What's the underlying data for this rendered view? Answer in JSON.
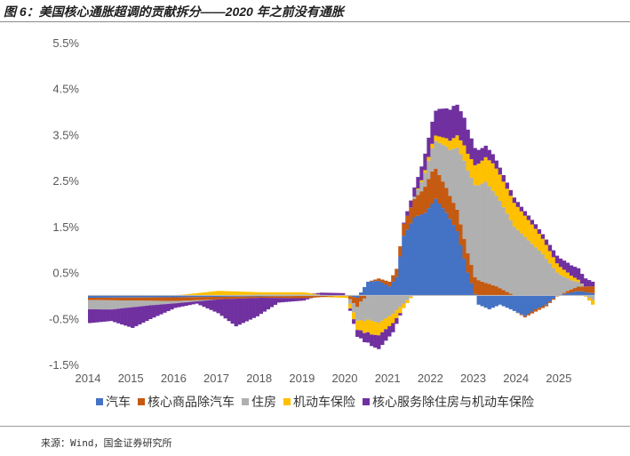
{
  "figure_title": "图 6：美国核心通胀超调的贡献拆分——2020 年之前没有通胀",
  "source": "来源：Wind，国金证券研究所",
  "chart_data": {
    "type": "bar",
    "stacked": true,
    "unit": "%",
    "ylim": [
      -1.5,
      5.5
    ],
    "yticks": [
      "5.5%",
      "4.5%",
      "3.5%",
      "2.5%",
      "1.5%",
      "0.5%",
      "-0.5%",
      "-1.5%"
    ],
    "ytick_values": [
      5.5,
      4.5,
      3.5,
      2.5,
      1.5,
      0.5,
      -0.5,
      -1.5
    ],
    "xticks": [
      "2014",
      "2015",
      "2016",
      "2017",
      "2018",
      "2019",
      "2020",
      "2021",
      "2022",
      "2023",
      "2024",
      "2025"
    ],
    "x_start": "2014-01",
    "x_end": "2025-10",
    "grid": false,
    "legend_position": "bottom",
    "series": [
      {
        "name": "汽车",
        "color": "#4472C4",
        "knots": [
          [
            "2014-01",
            -0.05
          ],
          [
            "2016-01",
            -0.04
          ],
          [
            "2018-01",
            -0.02
          ],
          [
            "2020-01",
            0.0
          ],
          [
            "2020-04",
            -0.05
          ],
          [
            "2020-07",
            0.3
          ],
          [
            "2020-10",
            0.32
          ],
          [
            "2021-01",
            0.2
          ],
          [
            "2021-03",
            0.4
          ],
          [
            "2021-05",
            1.3
          ],
          [
            "2021-08",
            1.7
          ],
          [
            "2021-11",
            1.8
          ],
          [
            "2022-02",
            2.1
          ],
          [
            "2022-05",
            1.8
          ],
          [
            "2022-08",
            1.4
          ],
          [
            "2022-11",
            0.5
          ],
          [
            "2023-02",
            -0.2
          ],
          [
            "2023-05",
            -0.3
          ],
          [
            "2023-08",
            -0.2
          ],
          [
            "2023-11",
            -0.3
          ],
          [
            "2024-03",
            -0.45
          ],
          [
            "2024-06",
            -0.3
          ],
          [
            "2024-09",
            -0.2
          ],
          [
            "2024-12",
            0.0
          ],
          [
            "2025-03",
            0.05
          ],
          [
            "2025-06",
            0.1
          ],
          [
            "2025-10",
            0.05
          ]
        ]
      },
      {
        "name": "核心商品除汽车",
        "color": "#C55A11",
        "knots": [
          [
            "2014-01",
            -0.05
          ],
          [
            "2016-01",
            -0.08
          ],
          [
            "2018-01",
            -0.03
          ],
          [
            "2019-01",
            -0.05
          ],
          [
            "2020-01",
            0.0
          ],
          [
            "2020-04",
            -0.2
          ],
          [
            "2020-07",
            0.0
          ],
          [
            "2021-01",
            0.1
          ],
          [
            "2021-06",
            0.3
          ],
          [
            "2021-10",
            0.5
          ],
          [
            "2022-01",
            0.7
          ],
          [
            "2022-06",
            0.5
          ],
          [
            "2022-12",
            0.4
          ],
          [
            "2023-03",
            0.3
          ],
          [
            "2023-07",
            0.2
          ],
          [
            "2023-12",
            0.0
          ],
          [
            "2024-06",
            -0.05
          ],
          [
            "2024-12",
            -0.02
          ],
          [
            "2025-03",
            0.05
          ],
          [
            "2025-10",
            0.15
          ]
        ]
      },
      {
        "name": "住房",
        "color": "#B0B0B0",
        "knots": [
          [
            "2014-01",
            -0.2
          ],
          [
            "2014-07",
            -0.2
          ],
          [
            "2015-06",
            -0.1
          ],
          [
            "2016-01",
            -0.05
          ],
          [
            "2017-01",
            0.0
          ],
          [
            "2018-01",
            0.02
          ],
          [
            "2019-01",
            0.02
          ],
          [
            "2020-01",
            0.0
          ],
          [
            "2020-03",
            -0.2
          ],
          [
            "2020-06",
            -0.5
          ],
          [
            "2020-10",
            -0.6
          ],
          [
            "2021-02",
            -0.4
          ],
          [
            "2021-06",
            -0.1
          ],
          [
            "2021-10",
            0.2
          ],
          [
            "2022-01",
            0.5
          ],
          [
            "2022-06",
            1.0
          ],
          [
            "2022-10",
            1.7
          ],
          [
            "2023-01",
            2.0
          ],
          [
            "2023-04",
            2.2
          ],
          [
            "2023-08",
            1.9
          ],
          [
            "2023-12",
            1.5
          ],
          [
            "2024-04",
            1.2
          ],
          [
            "2024-08",
            0.9
          ],
          [
            "2024-12",
            0.5
          ],
          [
            "2025-04",
            0.2
          ],
          [
            "2025-10",
            -0.1
          ]
        ]
      },
      {
        "name": "机动车保险",
        "color": "#FFC000",
        "knots": [
          [
            "2014-01",
            0.0
          ],
          [
            "2016-01",
            0.0
          ],
          [
            "2016-07",
            0.05
          ],
          [
            "2017-01",
            0.1
          ],
          [
            "2018-01",
            0.05
          ],
          [
            "2019-01",
            0.05
          ],
          [
            "2019-06",
            0.0
          ],
          [
            "2020-01",
            -0.05
          ],
          [
            "2020-04",
            -0.2
          ],
          [
            "2020-08",
            -0.3
          ],
          [
            "2021-02",
            -0.2
          ],
          [
            "2021-08",
            0.0
          ],
          [
            "2022-01",
            0.1
          ],
          [
            "2022-06",
            0.2
          ],
          [
            "2022-12",
            0.4
          ],
          [
            "2023-06",
            0.6
          ],
          [
            "2024-01",
            0.5
          ],
          [
            "2024-06",
            0.4
          ],
          [
            "2024-12",
            0.2
          ],
          [
            "2025-06",
            0.05
          ],
          [
            "2025-10",
            -0.1
          ]
        ]
      },
      {
        "name": "核心服务除住房与机动车保险",
        "color": "#7030A0",
        "knots": [
          [
            "2014-01",
            -0.3
          ],
          [
            "2014-07",
            -0.25
          ],
          [
            "2015-01",
            -0.45
          ],
          [
            "2015-06",
            -0.3
          ],
          [
            "2016-01",
            -0.1
          ],
          [
            "2016-07",
            -0.05
          ],
          [
            "2017-01",
            -0.3
          ],
          [
            "2017-06",
            -0.6
          ],
          [
            "2017-12",
            -0.4
          ],
          [
            "2018-06",
            -0.1
          ],
          [
            "2019-01",
            -0.05
          ],
          [
            "2019-06",
            0.05
          ],
          [
            "2019-12",
            0.05
          ],
          [
            "2020-04",
            -0.15
          ],
          [
            "2020-10",
            -0.3
          ],
          [
            "2021-02",
            -0.2
          ],
          [
            "2021-06",
            0.1
          ],
          [
            "2021-10",
            0.3
          ],
          [
            "2022-03",
            0.6
          ],
          [
            "2022-07",
            0.7
          ],
          [
            "2022-10",
            0.6
          ],
          [
            "2023-02",
            0.3
          ],
          [
            "2023-08",
            0.15
          ],
          [
            "2024-02",
            0.1
          ],
          [
            "2024-08",
            0.1
          ],
          [
            "2025-02",
            0.2
          ],
          [
            "2025-06",
            0.25
          ],
          [
            "2025-10",
            0.1
          ]
        ]
      }
    ]
  }
}
